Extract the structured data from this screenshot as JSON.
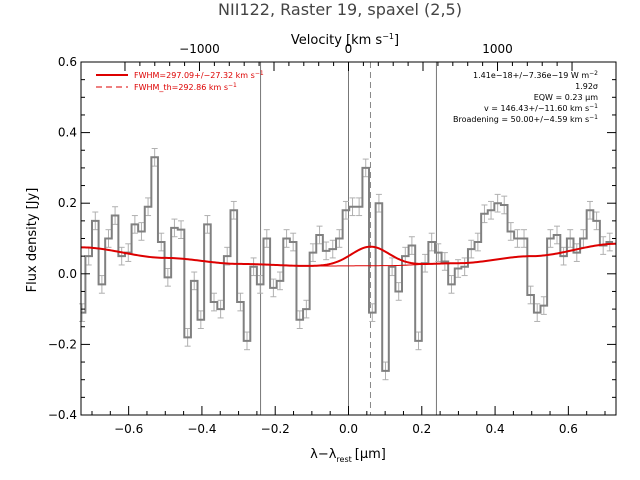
{
  "chart_data": {
    "type": "line",
    "title": "NII122, Raster 19, spaxel (2,5)",
    "xlabel_bottom": "λ−λ",
    "xlabel_bottom_sub": "rest",
    "xlabel_bottom_unit": "[μm]",
    "xlabel_top": "Velocity [km s",
    "xlabel_top_sup": "−1",
    "xlabel_top_close": "]",
    "ylabel": "Flux density [Jy]",
    "xlim": [
      -0.73,
      0.73
    ],
    "ylim": [
      -0.4,
      0.6
    ],
    "xticks": [
      -0.6,
      -0.4,
      -0.2,
      0.0,
      0.2,
      0.4,
      0.6
    ],
    "xtick_labels": [
      "−0.6",
      "−0.4",
      "−0.2",
      "0.0",
      "0.2",
      "0.4",
      "0.6"
    ],
    "yticks": [
      -0.4,
      -0.2,
      0.0,
      0.2,
      0.4,
      0.6
    ],
    "ytick_labels": [
      "−0.4",
      "−0.2",
      "0.0",
      "0.2",
      "0.4",
      "0.6"
    ],
    "top_ticks_km_s": [
      -1000,
      0,
      1000
    ],
    "top_tick_labels": [
      "−1000",
      "0",
      "1000"
    ],
    "km_s_per_um": 2459,
    "vlines_solid": [
      -0.24,
      0.0,
      0.24
    ],
    "vline_dashed": 0.06,
    "legend": [
      {
        "label": "FWHM=297.09+/−27.32 km s",
        "sup": "−1",
        "style": "solid",
        "color": "#dd0000"
      },
      {
        "label": "FWHM_th=292.86 km s",
        "sup": "−1",
        "style": "dashed",
        "color": "#dd0000"
      }
    ],
    "annotations": [
      {
        "text": "1.41e−18+/−7.36e−19 W m",
        "sup": "−2"
      },
      {
        "text": "1.92σ",
        "sup": ""
      },
      {
        "text": "EQW = 0.23 μm",
        "sup": ""
      },
      {
        "text": "v = 146.43+/−11.60 km s",
        "sup": "−1"
      },
      {
        "text": "Broadening = 50.00+/−4.59 km s",
        "sup": "−1"
      }
    ],
    "series": [
      {
        "style": "steps",
        "color": "#808080",
        "x": [
          -0.727,
          -0.709,
          -0.691,
          -0.673,
          -0.655,
          -0.637,
          -0.619,
          -0.601,
          -0.583,
          -0.565,
          -0.547,
          -0.529,
          -0.511,
          -0.493,
          -0.475,
          -0.457,
          -0.439,
          -0.421,
          -0.403,
          -0.385,
          -0.367,
          -0.349,
          -0.331,
          -0.313,
          -0.295,
          -0.277,
          -0.259,
          -0.241,
          -0.223,
          -0.205,
          -0.187,
          -0.169,
          -0.151,
          -0.133,
          -0.115,
          -0.097,
          -0.079,
          -0.061,
          -0.043,
          -0.025,
          -0.007,
          0.011,
          0.029,
          0.047,
          0.065,
          0.083,
          0.101,
          0.119,
          0.137,
          0.155,
          0.173,
          0.191,
          0.209,
          0.227,
          0.245,
          0.263,
          0.281,
          0.299,
          0.317,
          0.335,
          0.353,
          0.371,
          0.389,
          0.407,
          0.425,
          0.443,
          0.461,
          0.479,
          0.497,
          0.515,
          0.533,
          0.551,
          0.569,
          0.587,
          0.605,
          0.623,
          0.641,
          0.659,
          0.677,
          0.695,
          0.713
        ],
        "y": [
          -0.11,
          0.05,
          0.15,
          -0.03,
          0.1,
          0.165,
          0.05,
          0.06,
          0.14,
          0.12,
          0.19,
          0.33,
          0.09,
          -0.01,
          0.13,
          0.125,
          -0.18,
          -0.02,
          -0.13,
          0.14,
          -0.08,
          -0.1,
          0.05,
          0.18,
          -0.08,
          -0.19,
          0.02,
          -0.03,
          0.1,
          -0.04,
          -0.02,
          0.1,
          0.09,
          -0.13,
          -0.1,
          0.06,
          0.11,
          0.065,
          0.07,
          0.1,
          0.18,
          0.19,
          0.19,
          0.3,
          -0.11,
          0.2,
          -0.275,
          0.02,
          -0.05,
          0.05,
          0.08,
          -0.19,
          0.03,
          0.09,
          0.06,
          0.035,
          -0.03,
          0.015,
          0.02,
          0.07,
          0.09,
          0.17,
          0.18,
          0.2,
          0.195,
          0.12,
          0.1,
          0.1,
          -0.06,
          -0.11,
          -0.09,
          0.1,
          0.11,
          0.05,
          0.1,
          0.06,
          0.1,
          0.18,
          0.15,
          0.08,
          0.09
        ],
        "err": 0.025
      },
      {
        "name": "FWHM=297.09+/−27.32 km s−1",
        "style": "line",
        "color": "#dd0000",
        "type": "baseline_plus_gaussian",
        "baseline_points": {
          "x": [
            -0.73,
            -0.5,
            -0.3,
            -0.1,
            0.1,
            0.3,
            0.5,
            0.73
          ],
          "y": [
            0.075,
            0.045,
            0.028,
            0.022,
            0.023,
            0.03,
            0.05,
            0.085
          ]
        },
        "gaussian": {
          "center": 0.06,
          "amplitude": 0.054,
          "sigma": 0.052
        }
      }
    ]
  }
}
